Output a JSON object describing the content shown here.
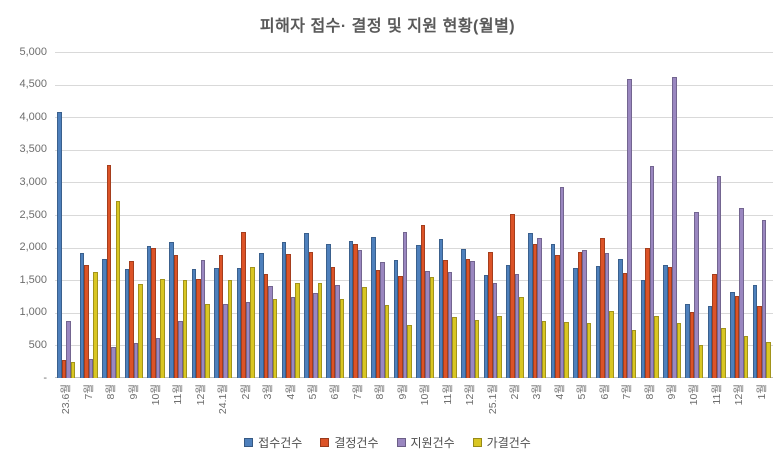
{
  "title": "피해자 접수· 결정 및 지원 현황(월별)",
  "y_axis": {
    "labels": [
      "5,000",
      "4,500",
      "4,000",
      "3,500",
      "3,000",
      "2,500",
      "2,000",
      "1,500",
      "1,000",
      "500",
      "-"
    ],
    "max": 5000,
    "step": 500
  },
  "legend": {
    "items": [
      {
        "label": "접수건수",
        "color": "#4e80bc"
      },
      {
        "label": "결정건수",
        "color": "#dc5327"
      },
      {
        "label": "지원건수",
        "color": "#9a87c0"
      },
      {
        "label": "가결건수",
        "color": "#d9c623"
      }
    ]
  },
  "chart_data": {
    "type": "bar",
    "title": "피해자 접수· 결정 및 지원 현황(월별)",
    "categories": [
      "23.6월",
      "7월",
      "8월",
      "9월",
      "10월",
      "11월",
      "12월",
      "24.1월",
      "2월",
      "3월",
      "4월",
      "5월",
      "6월",
      "7월",
      "8월",
      "9월",
      "10월",
      "11월",
      "12월",
      "25.1월",
      "2월",
      "3월",
      "4월",
      "5월",
      "6월",
      "7월",
      "8월",
      "9월",
      "10월",
      "11월",
      "12월",
      "1월"
    ],
    "series": [
      {
        "name": "접수건수",
        "color": "#4e80bc",
        "values": [
          4080,
          1910,
          1830,
          1670,
          2020,
          2090,
          1670,
          1690,
          1690,
          1920,
          2080,
          2230,
          2050,
          2100,
          2160,
          1810,
          2040,
          2130,
          1980,
          1580,
          1740,
          2230,
          2060,
          1680,
          1720,
          1830,
          1500,
          1730,
          1130,
          1100,
          1320,
          1420
        ]
      },
      {
        "name": "결정건수",
        "color": "#dc5327",
        "values": [
          270,
          1730,
          3270,
          1790,
          2000,
          1890,
          1520,
          1890,
          2240,
          1590,
          1900,
          1940,
          1700,
          2050,
          1650,
          1560,
          2340,
          1810,
          1820,
          1940,
          2510,
          2050,
          1880,
          1930,
          2140,
          1610,
          1990,
          1710,
          1010,
          1600,
          1260,
          1110
        ]
      },
      {
        "name": "지원건수",
        "color": "#9a87c0",
        "values": [
          880,
          290,
          480,
          530,
          610,
          870,
          1810,
          1140,
          1160,
          1410,
          1240,
          1310,
          1430,
          1970,
          1780,
          2240,
          1640,
          1620,
          1800,
          1460,
          1600,
          2150,
          2930,
          1960,
          1920,
          4590,
          3250,
          4620,
          2540,
          3100,
          2600,
          2430
        ]
      },
      {
        "name": "가결건수",
        "color": "#d9c623",
        "values": [
          250,
          1620,
          2720,
          1440,
          1520,
          1510,
          1130,
          1500,
          1700,
          1210,
          1460,
          1450,
          1210,
          1400,
          1120,
          810,
          1550,
          930,
          890,
          950,
          1250,
          870,
          860,
          850,
          1030,
          730,
          950,
          840,
          500,
          760,
          650,
          550
        ]
      }
    ],
    "ylim": [
      0,
      5000
    ],
    "grid": true,
    "legend_position": "bottom"
  }
}
